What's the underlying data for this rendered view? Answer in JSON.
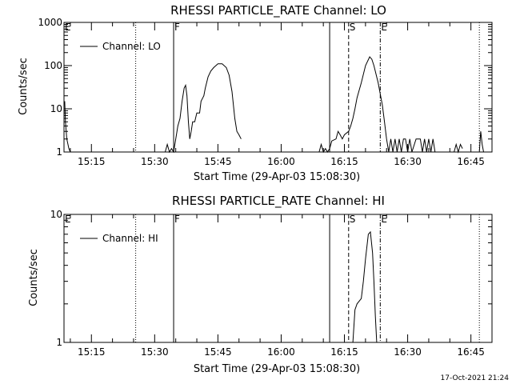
{
  "footer": {
    "stamp": "17-Oct-2021 21:24"
  },
  "chart_data": [
    {
      "type": "line",
      "title": "RHESSI PARTICLE_RATE Channel: LO",
      "xlabel": "Start Time (29-Apr-03 15:08:30)",
      "ylabel": "Counts/sec",
      "xlim": [
        "15:08:30",
        "16:50:00"
      ],
      "xticks": [
        "15:15",
        "15:30",
        "15:45",
        "16:00",
        "16:15",
        "16:30",
        "16:45"
      ],
      "yscale": "log",
      "ylim": [
        1,
        1000
      ],
      "yticks": [
        "1",
        "10",
        "100",
        "1000"
      ],
      "legend": {
        "placement": "top-left",
        "entries": [
          "Channel: LO"
        ]
      },
      "markers": [
        {
          "label": "E",
          "time": "15:08:30",
          "style": "solid"
        },
        {
          "label": "",
          "time": "15:25:30",
          "style": "dotted"
        },
        {
          "label": "F",
          "time": "15:34:30",
          "style": "solid"
        },
        {
          "label": "",
          "time": "16:11:30",
          "style": "solid"
        },
        {
          "label": "S",
          "time": "16:16:00",
          "style": "dashed"
        },
        {
          "label": "E",
          "time": "16:23:30",
          "style": "dashdot"
        },
        {
          "label": "",
          "time": "16:47:00",
          "style": "dotted"
        }
      ],
      "series": [
        {
          "name": "Channel: LO",
          "segments": [
            [
              [
                "15:08:40",
                15
              ],
              [
                "15:08:50",
                5
              ],
              [
                "15:09:10",
                2
              ],
              [
                "15:09:40",
                1.2
              ],
              [
                "15:10:00",
                1
              ]
            ],
            [
              [
                "15:32:30",
                1
              ],
              [
                "15:33:00",
                1.5
              ],
              [
                "15:33:30",
                1
              ],
              [
                "15:34:00",
                1.2
              ],
              [
                "15:34:30",
                1
              ],
              [
                "15:35:00",
                2
              ],
              [
                "15:35:30",
                4
              ],
              [
                "15:36:00",
                6
              ],
              [
                "15:36:30",
                15
              ],
              [
                "15:37:00",
                30
              ],
              [
                "15:37:20",
                35
              ],
              [
                "15:37:40",
                20
              ],
              [
                "15:38:00",
                5
              ],
              [
                "15:38:20",
                2
              ],
              [
                "15:38:40",
                3
              ],
              [
                "15:39:00",
                5
              ],
              [
                "15:39:30",
                5
              ],
              [
                "15:40:00",
                8
              ],
              [
                "15:40:40",
                8
              ],
              [
                "15:41:00",
                15
              ],
              [
                "15:41:40",
                20
              ],
              [
                "15:42:00",
                30
              ],
              [
                "15:42:40",
                55
              ],
              [
                "15:43:20",
                75
              ],
              [
                "15:44:00",
                90
              ],
              [
                "15:45:00",
                110
              ],
              [
                "15:46:00",
                110
              ],
              [
                "15:47:00",
                90
              ],
              [
                "15:47:40",
                60
              ],
              [
                "15:48:20",
                25
              ],
              [
                "15:49:00",
                6
              ],
              [
                "15:49:30",
                3
              ],
              [
                "15:50:00",
                2.5
              ],
              [
                "15:50:30",
                2
              ]
            ],
            [
              [
                "16:09:00",
                1
              ],
              [
                "16:09:30",
                1.5
              ],
              [
                "16:10:00",
                1
              ],
              [
                "16:10:30",
                1.2
              ],
              [
                "16:11:00",
                1
              ],
              [
                "16:11:30",
                1.2
              ],
              [
                "16:12:00",
                1.8
              ],
              [
                "16:13:00",
                2
              ],
              [
                "16:13:30",
                3
              ],
              [
                "16:14:00",
                2.5
              ],
              [
                "16:14:30",
                2
              ],
              [
                "16:15:00",
                2.5
              ],
              [
                "16:16:00",
                3
              ],
              [
                "16:16:30",
                4
              ],
              [
                "16:17:00",
                6
              ],
              [
                "16:17:30",
                10
              ],
              [
                "16:18:00",
                18
              ],
              [
                "16:19:00",
                40
              ],
              [
                "16:20:00",
                100
              ],
              [
                "16:21:00",
                160
              ],
              [
                "16:21:30",
                140
              ],
              [
                "16:22:00",
                100
              ],
              [
                "16:23:00",
                40
              ],
              [
                "16:24:00",
                12
              ],
              [
                "16:24:30",
                5
              ],
              [
                "16:25:00",
                2
              ],
              [
                "16:25:30",
                1
              ],
              [
                "16:26:00",
                2
              ],
              [
                "16:26:30",
                1
              ],
              [
                "16:27:00",
                2
              ],
              [
                "16:27:30",
                1
              ],
              [
                "16:28:00",
                2
              ],
              [
                "16:28:30",
                1
              ],
              [
                "16:29:00",
                2
              ],
              [
                "16:29:30",
                2
              ],
              [
                "16:30:00",
                1
              ],
              [
                "16:30:30",
                2
              ],
              [
                "16:31:00",
                1
              ],
              [
                "16:32:00",
                2
              ],
              [
                "16:33:00",
                2
              ],
              [
                "16:33:30",
                1
              ],
              [
                "16:34:00",
                2
              ],
              [
                "16:34:30",
                1
              ],
              [
                "16:35:00",
                2
              ],
              [
                "16:35:30",
                1
              ],
              [
                "16:36:00",
                2
              ],
              [
                "16:36:30",
                1
              ]
            ],
            [
              [
                "16:41:00",
                1
              ],
              [
                "16:41:30",
                1.5
              ],
              [
                "16:42:00",
                1
              ],
              [
                "16:42:30",
                1.5
              ],
              [
                "16:43:00",
                1.2
              ]
            ],
            [
              [
                "16:47:00",
                1
              ],
              [
                "16:47:20",
                3
              ],
              [
                "16:47:40",
                1.5
              ],
              [
                "16:48:00",
                1
              ]
            ]
          ]
        }
      ]
    },
    {
      "type": "line",
      "title": "RHESSI PARTICLE_RATE Channel: HI",
      "xlabel": "Start Time (29-Apr-03 15:08:30)",
      "ylabel": "Counts/sec",
      "xlim": [
        "15:08:30",
        "16:50:00"
      ],
      "xticks": [
        "15:15",
        "15:30",
        "15:45",
        "16:00",
        "16:15",
        "16:30",
        "16:45"
      ],
      "yscale": "log",
      "ylim": [
        1,
        10
      ],
      "yticks": [
        "1",
        "10"
      ],
      "legend": {
        "placement": "top-left",
        "entries": [
          "Channel: HI"
        ]
      },
      "markers": [
        {
          "label": "E",
          "time": "15:08:30",
          "style": "solid"
        },
        {
          "label": "",
          "time": "15:25:30",
          "style": "dotted"
        },
        {
          "label": "F",
          "time": "15:34:30",
          "style": "solid"
        },
        {
          "label": "",
          "time": "16:11:30",
          "style": "solid"
        },
        {
          "label": "S",
          "time": "16:16:00",
          "style": "dashed"
        },
        {
          "label": "E",
          "time": "16:23:30",
          "style": "dashdot"
        },
        {
          "label": "",
          "time": "16:47:00",
          "style": "dotted"
        }
      ],
      "series": [
        {
          "name": "Channel: HI",
          "segments": [
            [
              [
                "16:17:00",
                1
              ],
              [
                "16:17:30",
                1.8
              ],
              [
                "16:18:00",
                2
              ],
              [
                "16:19:00",
                2.2
              ],
              [
                "16:19:30",
                3
              ],
              [
                "16:20:00",
                4.5
              ],
              [
                "16:20:40",
                7
              ],
              [
                "16:21:10",
                7.3
              ],
              [
                "16:21:40",
                5
              ],
              [
                "16:22:00",
                3
              ],
              [
                "16:22:20",
                1.6
              ],
              [
                "16:22:40",
                1
              ]
            ]
          ]
        }
      ]
    }
  ]
}
